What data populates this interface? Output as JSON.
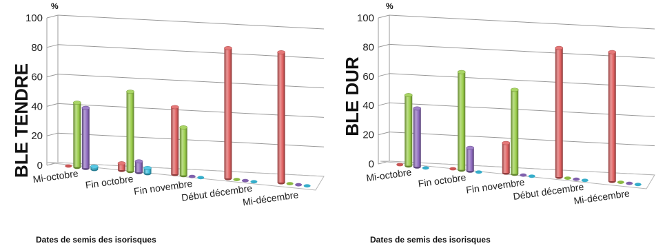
{
  "chart_data": [
    {
      "type": "bar",
      "ylabel": "BLE TENDRE",
      "unit": "%",
      "xlabel": "Dates de semis des isorisques",
      "ylim": [
        0,
        100
      ],
      "yticks": [
        "0",
        "20",
        "40",
        "60",
        "80",
        "100"
      ],
      "categories": [
        "Mi-octobre",
        "Fin octobre",
        "Fin novembre",
        "Début décembre",
        "Mi-décembre"
      ],
      "series": [
        {
          "color": "#e06060",
          "values": [
            0,
            5,
            49,
            95,
            95
          ]
        },
        {
          "color": "#9acd4a",
          "values": [
            47,
            58,
            35,
            0,
            0
          ]
        },
        {
          "color": "#8e6bbf",
          "values": [
            44,
            8,
            0,
            0,
            0
          ]
        },
        {
          "color": "#3cc0e0",
          "values": [
            2,
            4,
            0,
            0,
            0
          ]
        }
      ]
    },
    {
      "type": "bar",
      "ylabel": "BLE DUR",
      "unit": "%",
      "xlabel": "Dates de semis des isorisques",
      "ylim": [
        0,
        100
      ],
      "yticks": [
        "0",
        "20",
        "40",
        "60",
        "80",
        "100"
      ],
      "categories": [
        "Mi-octobre",
        "Fin octobre",
        "Fin novembre",
        "Début décembre",
        "Mi-décembre"
      ],
      "series": [
        {
          "color": "#e06060",
          "values": [
            0,
            0,
            22,
            95,
            95
          ]
        },
        {
          "color": "#9acd4a",
          "values": [
            52,
            72,
            62,
            0,
            0
          ]
        },
        {
          "color": "#8e6bbf",
          "values": [
            43,
            17,
            0,
            0,
            0
          ]
        },
        {
          "color": "#3cc0e0",
          "values": [
            0,
            0,
            0,
            0,
            0
          ]
        }
      ]
    }
  ]
}
